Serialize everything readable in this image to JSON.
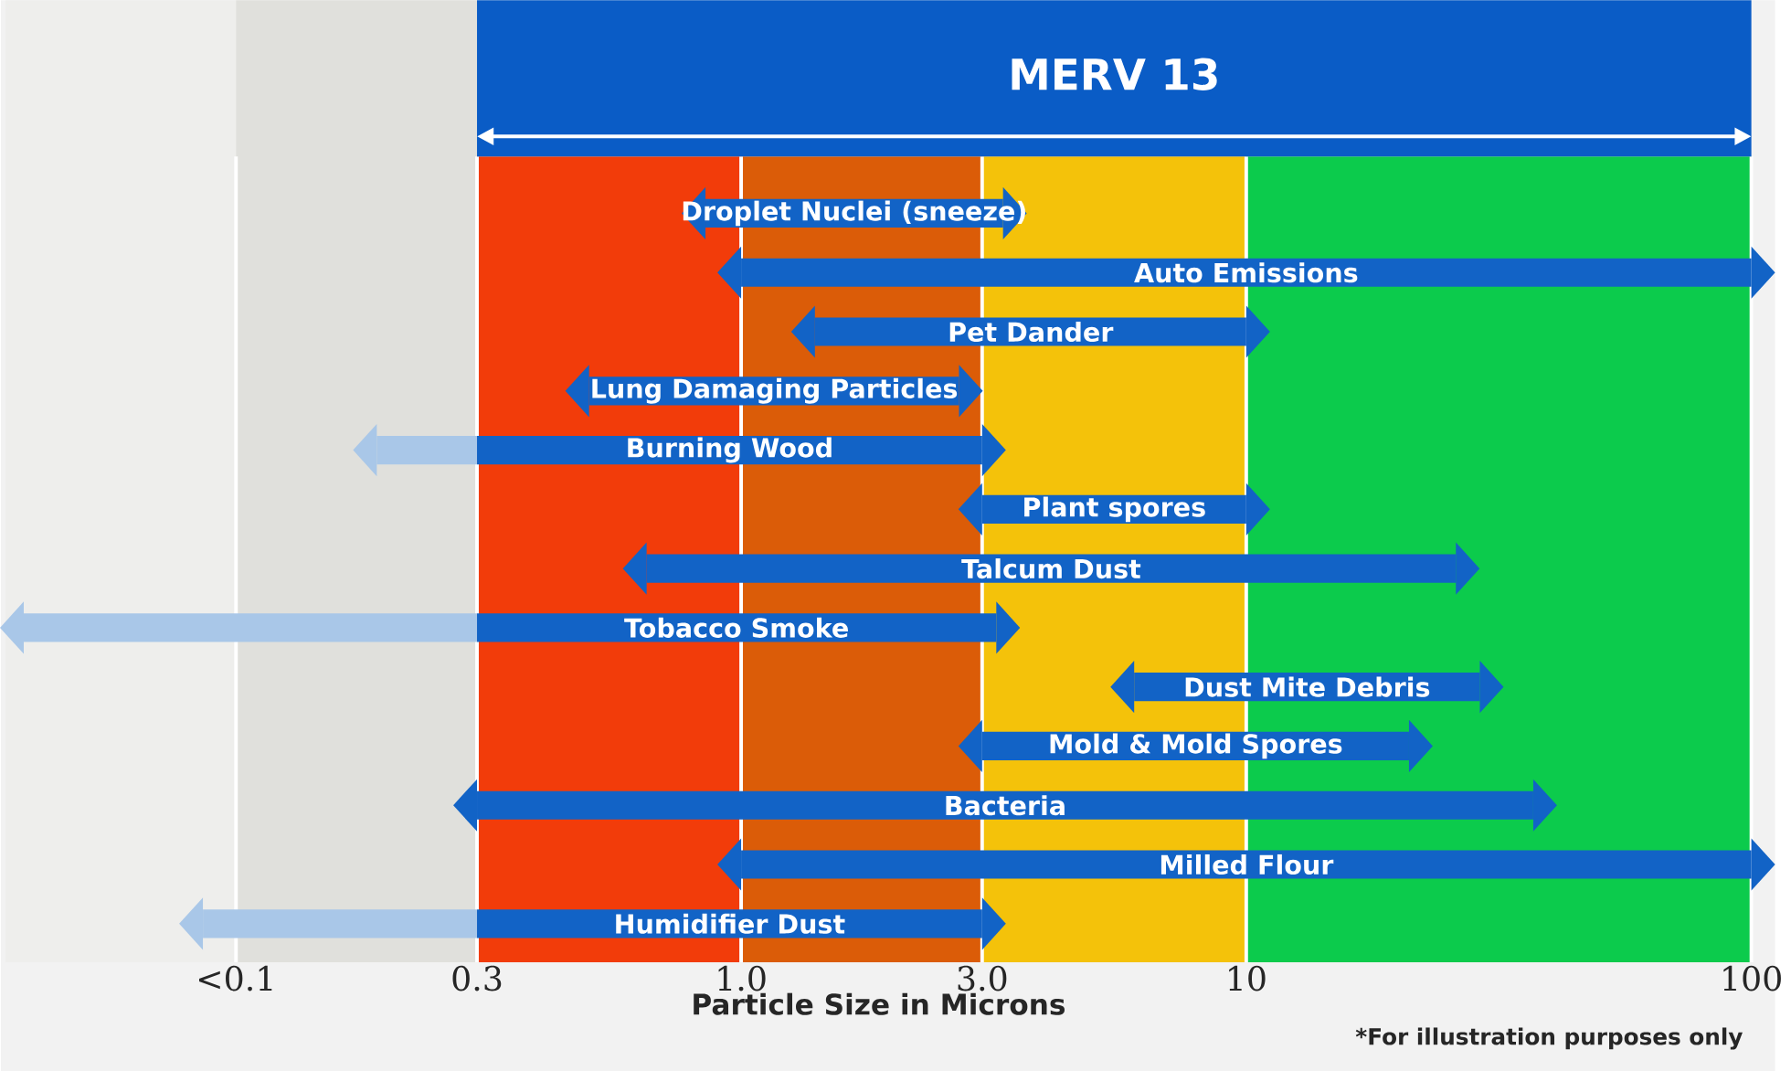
{
  "chart_data": {
    "type": "bar",
    "orientation": "horizontal",
    "title": "MERV 13",
    "xlabel": "Particle Size in Microns",
    "log": "x",
    "grid": "x",
    "tick_labels": "x",
    "annotations": [
      "*For illustration purposes only"
    ],
    "categories": [
      "Droplet Nuclei (sneeze)",
      "Auto Emissions",
      "Pet Dander",
      "Lung Damaging Particles",
      "Burning Wood",
      "Plant spores",
      "Talcum Dust",
      "Tobacco Smoke",
      "Dust Mite Debris",
      "Mold & Mold Spores",
      "Bacteria",
      "Milled Flour",
      "Humidifier Dust"
    ],
    "series": [
      {
        "color": "#a9c7e8",
        "base": [
          null,
          null,
          null,
          null,
          0.19,
          null,
          null,
          0.038,
          null,
          null,
          null,
          null,
          0.086
        ],
        "values": [
          null,
          null,
          null,
          null,
          0.11,
          null,
          null,
          0.262,
          null,
          null,
          null,
          null,
          0.214
        ]
      },
      {
        "color": "#1263c6",
        "base": [
          0.85,
          1,
          1.4,
          0.5,
          0.3,
          3,
          0.65,
          0.3,
          6,
          3,
          0.3,
          1,
          0.3
        ],
        "values": [
          2.45,
          99,
          8.6,
          2.2,
          2.7,
          7,
          25.35,
          2.9,
          23,
          18,
          36.7,
          99,
          2.7
        ]
      }
    ],
    "xlim": [
      0.035,
      100
    ],
    "xticks": [
      {
        "value": 0.1,
        "label": "<0.1"
      },
      0.3,
      {
        "value": 1,
        "label": "1.0"
      },
      {
        "value": 3,
        "label": "3.0"
      },
      10,
      100
    ],
    "bands": [
      {
        "axis": "x",
        "from": 0.035,
        "to": 0.1,
        "color": "#eeeeec"
      },
      {
        "axis": "x",
        "from": 0.1,
        "to": 0.3,
        "color": "#e0e0dc"
      },
      {
        "axis": "x",
        "from": 0.3,
        "to": 1,
        "color": "#f23c0a"
      },
      {
        "axis": "x",
        "from": 1,
        "to": 3,
        "color": "#db5c08"
      },
      {
        "axis": "x",
        "from": 3,
        "to": 10,
        "color": "#f4c20a"
      },
      {
        "axis": "x",
        "from": 10,
        "to": 100,
        "color": "#0ccb4c"
      }
    ]
  }
}
